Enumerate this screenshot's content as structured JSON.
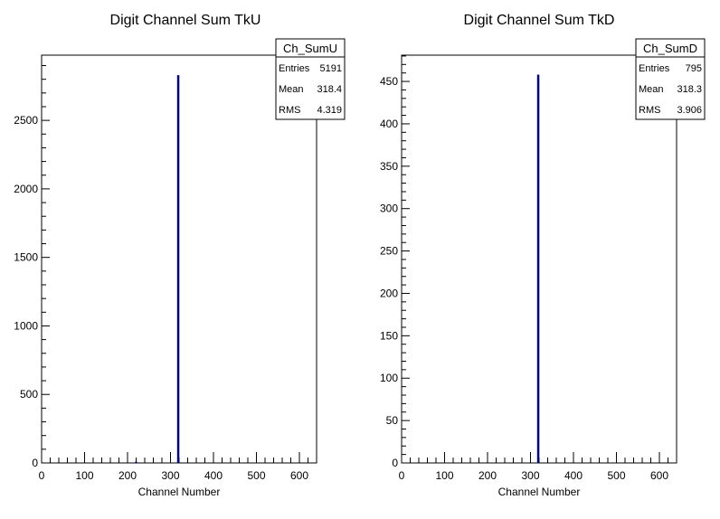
{
  "chart_data": [
    {
      "type": "bar",
      "title": "Digit Channel Sum TkU",
      "xlabel": "Channel Number",
      "ylabel": "",
      "xlim": [
        0,
        640
      ],
      "ylim": [
        0,
        2976
      ],
      "x_ticks": [
        0,
        100,
        200,
        300,
        400,
        500,
        600
      ],
      "y_ticks": [
        0,
        500,
        1000,
        1500,
        2000,
        2500
      ],
      "x_tick_labels": [
        "0",
        "100",
        "200",
        "300",
        "400",
        "500",
        "600"
      ],
      "y_tick_labels": [
        "0",
        "500",
        "1000",
        "1500",
        "2000",
        "2500"
      ],
      "bars": [
        {
          "x": 220,
          "value": 8
        },
        {
          "x": 318,
          "value": 2830
        }
      ],
      "series_color": "#000080",
      "stats": {
        "name": "Ch_SumU",
        "rows": [
          {
            "label": "Entries",
            "value": "5191"
          },
          {
            "label": "Mean",
            "value": "318.4"
          },
          {
            "label": "RMS",
            "value": "4.319"
          }
        ]
      }
    },
    {
      "type": "bar",
      "title": "Digit Channel Sum TkD",
      "xlabel": "Channel Number",
      "ylabel": "",
      "xlim": [
        0,
        640
      ],
      "ylim": [
        0,
        481
      ],
      "x_ticks": [
        0,
        100,
        200,
        300,
        400,
        500,
        600
      ],
      "y_ticks": [
        0,
        50,
        100,
        150,
        200,
        250,
        300,
        350,
        400,
        450
      ],
      "x_tick_labels": [
        "0",
        "100",
        "200",
        "300",
        "400",
        "500",
        "600"
      ],
      "y_tick_labels": [
        "0",
        "50",
        "100",
        "150",
        "200",
        "250",
        "300",
        "350",
        "400",
        "450"
      ],
      "bars": [
        {
          "x": 318,
          "value": 458
        }
      ],
      "series_color": "#000080",
      "stats": {
        "name": "Ch_SumD",
        "rows": [
          {
            "label": "Entries",
            "value": "795"
          },
          {
            "label": "Mean",
            "value": "318.3"
          },
          {
            "label": "RMS",
            "value": "3.906"
          }
        ]
      }
    }
  ]
}
